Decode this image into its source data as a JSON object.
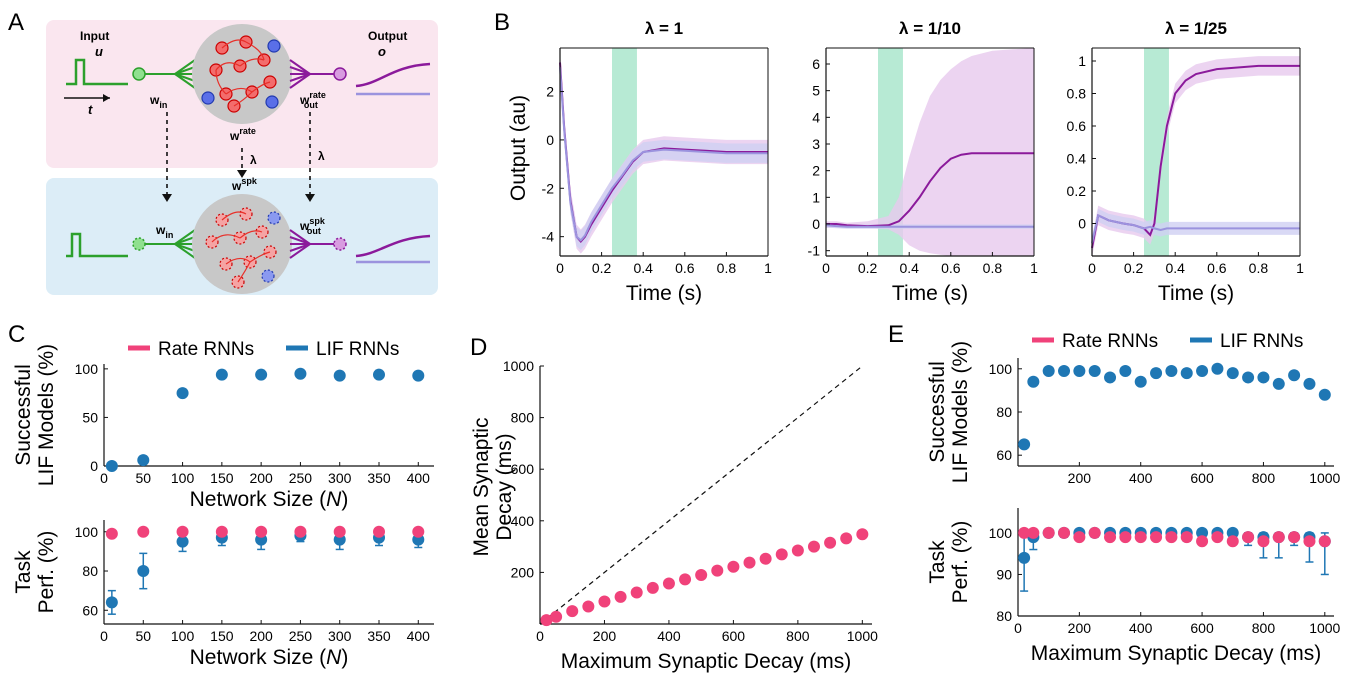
{
  "panel_labels": {
    "a": "A",
    "b": "B",
    "c": "C",
    "d": "D",
    "e": "E"
  },
  "schematic": {
    "input_title": "Input",
    "input_var": "u",
    "time_var": "t",
    "output_title": "Output",
    "output_var": "o",
    "w_in_rate": "w",
    "w_in_rate_sub": "in",
    "w_rate": "w",
    "w_rate_sup": "rate",
    "w_out_rate": "w",
    "w_out_rate_sup": "rate",
    "w_out_rate_sub": "out",
    "lambda_mid": "λ",
    "lambda_right": "λ",
    "w_spk": "w",
    "w_spk_sup": "spk",
    "w_in_spk": "w",
    "w_in_spk_sub": "in",
    "w_out_spk": "w",
    "w_out_spk_sup": "spk",
    "w_out_spk_sub": "out",
    "colors": {
      "rate_bg": "#fae6ef",
      "spk_bg": "#dcedf7",
      "input_green": "#2ca02c",
      "output_purple": "#8b1a9b",
      "light_purple": "#9b93de",
      "neuron_red": "#e8302a",
      "neuron_blue": "#3a4fd0"
    }
  },
  "colors": {
    "rate": "#f0427a",
    "lif": "#1f77b4",
    "rate_trace": "#8b1a9b",
    "lif_trace": "#9b93de",
    "window": "#9fe3c5",
    "band_purple": "#e7c9ee",
    "band_blue": "#cfd0f2"
  },
  "chart_data": [
    {
      "id": "B1",
      "type": "line",
      "title": "λ = 1",
      "xlabel": "Time (s)",
      "ylabel": "Output (au)",
      "xlim": [
        0,
        1
      ],
      "ylim": [
        -4.8,
        3.8
      ],
      "xticks": [
        "0",
        "0.2",
        "0.4",
        "0.6",
        "0.8",
        "1"
      ],
      "yticks": [
        "-4",
        "-2",
        "0",
        "2"
      ],
      "stimulus_window": [
        0.25,
        0.37
      ],
      "x": [
        0,
        0.02,
        0.05,
        0.08,
        0.1,
        0.12,
        0.15,
        0.2,
        0.25,
        0.3,
        0.35,
        0.4,
        0.5,
        0.6,
        0.7,
        0.8,
        0.9,
        1.0
      ],
      "series": [
        {
          "y": [
            3.2,
            0.5,
            -2.5,
            -4.0,
            -4.2,
            -4.0,
            -3.5,
            -2.8,
            -2.1,
            -1.5,
            -0.9,
            -0.5,
            -0.35,
            -0.4,
            -0.45,
            -0.5,
            -0.5,
            -0.5
          ],
          "band": 0.5
        },
        {
          "y": [
            3.0,
            0.4,
            -2.6,
            -4.0,
            -4.15,
            -3.95,
            -3.4,
            -2.7,
            -2.0,
            -1.45,
            -0.85,
            -0.5,
            -0.4,
            -0.45,
            -0.5,
            -0.55,
            -0.55,
            -0.55
          ],
          "band": 0.4
        }
      ]
    },
    {
      "id": "B2",
      "type": "line",
      "title": "λ = 1/10",
      "xlabel": "Time (s)",
      "ylabel": "",
      "xlim": [
        0,
        1
      ],
      "ylim": [
        -1.2,
        6.6
      ],
      "xticks": [
        "0",
        "0.2",
        "0.4",
        "0.6",
        "0.8",
        "1"
      ],
      "yticks": [
        "-1",
        "0",
        "1",
        "2",
        "3",
        "4",
        "5",
        "6"
      ],
      "stimulus_window": [
        0.25,
        0.37
      ],
      "x": [
        0,
        0.05,
        0.1,
        0.2,
        0.3,
        0.35,
        0.4,
        0.45,
        0.5,
        0.55,
        0.6,
        0.65,
        0.7,
        0.8,
        0.9,
        1.0
      ],
      "series": [
        {
          "y": [
            0,
            0,
            -0.05,
            -0.08,
            -0.05,
            0.1,
            0.5,
            1.0,
            1.6,
            2.1,
            2.45,
            2.6,
            2.65,
            2.65,
            2.65,
            2.65
          ],
          "band_upper": [
            0.1,
            0.1,
            0.05,
            0.1,
            0.3,
            1.0,
            2.5,
            3.8,
            4.8,
            5.4,
            5.8,
            6.1,
            6.3,
            6.5,
            6.55,
            6.6
          ],
          "band_lower": [
            -0.15,
            -0.12,
            -0.1,
            -0.15,
            -0.2,
            -0.4,
            -0.8,
            -1.0,
            -1.1,
            -1.15,
            -1.2,
            -1.2,
            -1.2,
            -1.2,
            -1.2,
            -1.2
          ]
        },
        {
          "y": [
            -0.05,
            -0.08,
            -0.1,
            -0.1,
            -0.1,
            -0.1,
            -0.1,
            -0.1,
            -0.1,
            -0.1,
            -0.1,
            -0.1,
            -0.1,
            -0.1,
            -0.1,
            -0.1
          ],
          "band": 0.08
        }
      ]
    },
    {
      "id": "B3",
      "type": "line",
      "title": "λ = 1/25",
      "xlabel": "Time (s)",
      "ylabel": "",
      "xlim": [
        0,
        1
      ],
      "ylim": [
        -0.2,
        1.08
      ],
      "xticks": [
        "0",
        "0.2",
        "0.4",
        "0.6",
        "0.8",
        "1"
      ],
      "yticks": [
        "0",
        "0.2",
        "0.4",
        "0.6",
        "0.8",
        "1"
      ],
      "stimulus_window": [
        0.25,
        0.37
      ],
      "x": [
        0,
        0.03,
        0.08,
        0.15,
        0.2,
        0.25,
        0.28,
        0.3,
        0.33,
        0.36,
        0.4,
        0.45,
        0.5,
        0.6,
        0.7,
        0.8,
        0.9,
        1.0
      ],
      "series": [
        {
          "y": [
            -0.15,
            0.05,
            0.02,
            0.0,
            -0.01,
            -0.03,
            -0.07,
            0.0,
            0.35,
            0.6,
            0.8,
            0.88,
            0.92,
            0.95,
            0.96,
            0.97,
            0.97,
            0.97
          ],
          "band": 0.06
        },
        {
          "y": [
            -0.12,
            0.05,
            0.02,
            0.0,
            -0.01,
            -0.03,
            -0.02,
            -0.03,
            -0.04,
            -0.03,
            -0.03,
            -0.03,
            -0.03,
            -0.03,
            -0.03,
            -0.03,
            -0.03,
            -0.03
          ],
          "band": 0.04
        }
      ]
    },
    {
      "id": "C_top",
      "type": "scatter",
      "xlabel": "Network Size (N)",
      "ylabel": "Successful LIF Models (%)",
      "ylabel_lines": [
        "Successful",
        "LIF Models (%)"
      ],
      "xlim": [
        0,
        420
      ],
      "ylim": [
        0,
        105
      ],
      "xticks": [
        "0",
        "50",
        "100",
        "150",
        "200",
        "250",
        "300",
        "350",
        "400"
      ],
      "yticks": [
        "0",
        "50",
        "100"
      ],
      "legend": [
        "Rate RNNs",
        "LIF RNNs"
      ],
      "x": [
        10,
        50,
        100,
        150,
        200,
        250,
        300,
        350,
        400
      ],
      "series": [
        {
          "name": "LIF RNNs",
          "y": [
            0,
            6,
            75,
            94,
            94,
            95,
            93,
            94,
            93
          ]
        }
      ]
    },
    {
      "id": "C_bottom",
      "type": "scatter",
      "xlabel": "Network Size (N)",
      "ylabel": "Task Perf. (%)",
      "ylabel_lines": [
        "Task",
        "Perf. (%)"
      ],
      "xlim": [
        0,
        420
      ],
      "ylim": [
        53,
        106
      ],
      "xticks": [
        "0",
        "50",
        "100",
        "150",
        "200",
        "250",
        "300",
        "350",
        "400"
      ],
      "yticks": [
        "60",
        "80",
        "100"
      ],
      "x": [
        10,
        50,
        100,
        150,
        200,
        250,
        300,
        350,
        400
      ],
      "series": [
        {
          "name": "LIF RNNs",
          "y": [
            64,
            80,
            95,
            97,
            96,
            98,
            96,
            97,
            96
          ],
          "err": [
            6,
            9,
            5,
            4,
            5,
            3,
            5,
            4,
            4
          ]
        },
        {
          "name": "Rate RNNs",
          "y": [
            99,
            100,
            100,
            100,
            100,
            100,
            100,
            100,
            100
          ]
        }
      ]
    },
    {
      "id": "D",
      "type": "scatter",
      "xlabel": "Maximum Synaptic Decay (ms)",
      "ylabel": "Mean Synaptic Decay (ms)",
      "ylabel_lines": [
        "Mean Synaptic",
        "Decay (ms)"
      ],
      "xlim": [
        0,
        1030
      ],
      "ylim": [
        0,
        1000
      ],
      "xticks": [
        "0",
        "200",
        "400",
        "600",
        "800",
        "1000"
      ],
      "yticks": [
        "200",
        "400",
        "600",
        "800",
        "1000"
      ],
      "identity_line": true,
      "x": [
        20,
        50,
        100,
        150,
        200,
        250,
        300,
        350,
        400,
        450,
        500,
        550,
        600,
        650,
        700,
        750,
        800,
        850,
        900,
        950,
        1000
      ],
      "series": [
        {
          "name": "Rate RNNs",
          "y": [
            15,
            28,
            50,
            68,
            87,
            105,
            122,
            140,
            157,
            173,
            190,
            207,
            222,
            238,
            253,
            270,
            285,
            300,
            315,
            332,
            348
          ]
        }
      ]
    },
    {
      "id": "E_top",
      "type": "scatter",
      "xlabel": "",
      "ylabel": "Successful LIF Models (%)",
      "ylabel_lines": [
        "Successful",
        "LIF Models (%)"
      ],
      "xlim": [
        0,
        1030
      ],
      "ylim": [
        55,
        105
      ],
      "xticks": [
        "200",
        "400",
        "600",
        "800",
        "1000"
      ],
      "yticks": [
        "60",
        "80",
        "100"
      ],
      "legend": [
        "Rate RNNs",
        "LIF RNNs"
      ],
      "x": [
        20,
        50,
        100,
        150,
        200,
        250,
        300,
        350,
        400,
        450,
        500,
        550,
        600,
        650,
        700,
        750,
        800,
        850,
        900,
        950,
        1000
      ],
      "series": [
        {
          "name": "LIF RNNs",
          "y": [
            65,
            94,
            99,
            99,
            99,
            99,
            96,
            99,
            94,
            98,
            99,
            98,
            99,
            100,
            98,
            96,
            96,
            93,
            97,
            93,
            88
          ]
        }
      ]
    },
    {
      "id": "E_bottom",
      "type": "scatter",
      "xlabel": "Maximum Synaptic Decay (ms)",
      "ylabel": "Task Perf. (%)",
      "ylabel_lines": [
        "Task",
        "Perf. (%)"
      ],
      "xlim": [
        0,
        1030
      ],
      "ylim": [
        80,
        106
      ],
      "xticks": [
        "0",
        "200",
        "400",
        "600",
        "800",
        "1000"
      ],
      "yticks": [
        "80",
        "90",
        "100"
      ],
      "x": [
        20,
        50,
        100,
        150,
        200,
        250,
        300,
        350,
        400,
        450,
        500,
        550,
        600,
        650,
        700,
        750,
        800,
        850,
        900,
        950,
        1000
      ],
      "series": [
        {
          "name": "LIF RNNs",
          "y": [
            94,
            99,
            100,
            100,
            100,
            100,
            100,
            100,
            100,
            100,
            100,
            100,
            100,
            100,
            100,
            99,
            99,
            99,
            99,
            99,
            98
          ],
          "err": [
            8,
            3,
            1,
            1,
            1,
            1,
            1,
            1,
            1,
            1,
            1,
            2,
            1,
            1,
            1,
            2,
            5,
            5,
            2,
            6,
            8
          ]
        },
        {
          "name": "Rate RNNs",
          "y": [
            100,
            100,
            100,
            100,
            99,
            100,
            99,
            99,
            99,
            99,
            99,
            99,
            98,
            99,
            98,
            99,
            98,
            99,
            99,
            98,
            98
          ]
        }
      ]
    }
  ]
}
